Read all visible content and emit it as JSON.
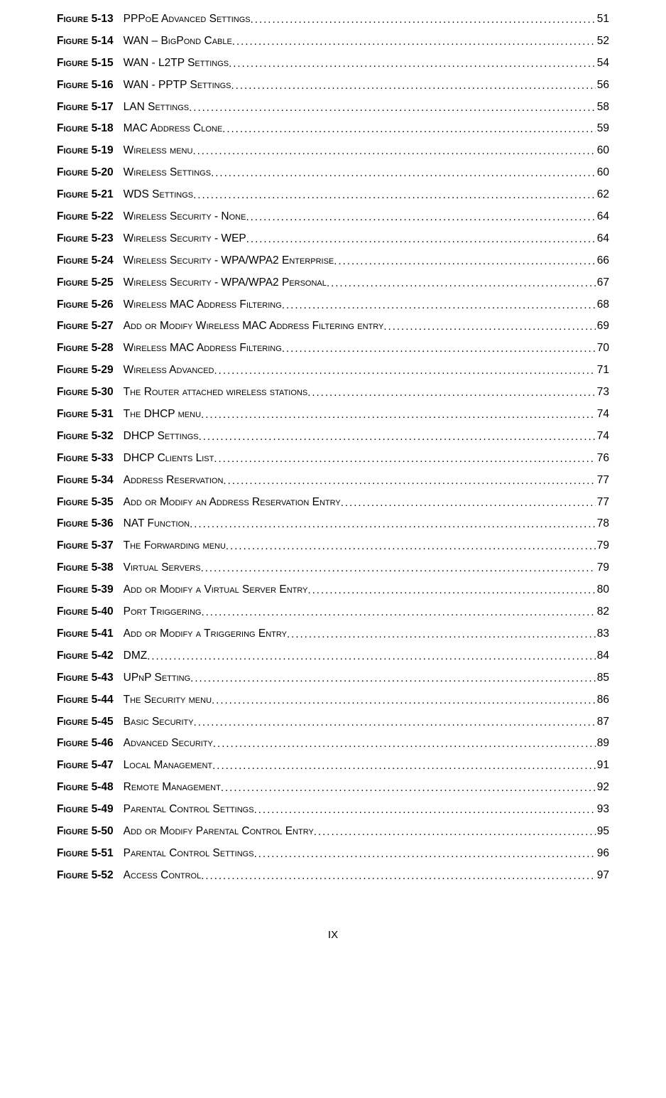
{
  "entries": [
    {
      "label": "Figure 5-13",
      "title": "PPPoE Advanced Settings",
      "page": "51"
    },
    {
      "label": "Figure 5-14",
      "title": "WAN – BigPond Cable",
      "page": "52"
    },
    {
      "label": "Figure 5-15",
      "title": "WAN - L2TP Settings",
      "page": "54"
    },
    {
      "label": "Figure 5-16",
      "title": "WAN - PPTP Settings",
      "page": "56"
    },
    {
      "label": "Figure 5-17",
      "title": "LAN Settings",
      "page": "58"
    },
    {
      "label": "Figure 5-18",
      "title": "MAC Address Clone",
      "page": "59"
    },
    {
      "label": "Figure 5-19",
      "title": "Wireless menu",
      "page": "60"
    },
    {
      "label": "Figure 5-20",
      "title": "Wireless Settings",
      "page": "60"
    },
    {
      "label": "Figure 5-21",
      "title": "WDS Settings",
      "page": "62"
    },
    {
      "label": "Figure 5-22",
      "title": "Wireless Security - None",
      "page": "64"
    },
    {
      "label": "Figure 5-23",
      "title": "Wireless Security - WEP",
      "page": "64"
    },
    {
      "label": "Figure 5-24",
      "title": "Wireless Security - WPA/WPA2 Enterprise",
      "page": "66"
    },
    {
      "label": "Figure 5-25",
      "title": "Wireless Security - WPA/WPA2 Personal",
      "page": "67"
    },
    {
      "label": "Figure 5-26",
      "title": "Wireless MAC Address Filtering",
      "page": "68"
    },
    {
      "label": "Figure 5-27",
      "title": "Add or Modify Wireless MAC Address Filtering entry",
      "page": "69"
    },
    {
      "label": "Figure 5-28",
      "title": "Wireless MAC Address Filtering",
      "page": "70"
    },
    {
      "label": "Figure 5-29",
      "title": "Wireless Advanced",
      "page": "71"
    },
    {
      "label": "Figure 5-30",
      "title": "The Router attached wireless stations",
      "page": "73"
    },
    {
      "label": "Figure 5-31",
      "title": "The DHCP menu",
      "page": "74"
    },
    {
      "label": "Figure 5-32",
      "title": "DHCP Settings",
      "page": "74"
    },
    {
      "label": "Figure 5-33",
      "title": "DHCP Clients List",
      "page": "76"
    },
    {
      "label": "Figure 5-34",
      "title": "Address Reservation",
      "page": "77"
    },
    {
      "label": "Figure 5-35",
      "title": "Add or Modify an Address Reservation Entry",
      "page": "77"
    },
    {
      "label": "Figure 5-36",
      "title": "NAT Function",
      "page": "78"
    },
    {
      "label": "Figure 5-37",
      "title": "The Forwarding menu",
      "page": "79"
    },
    {
      "label": "Figure 5-38",
      "title": "Virtual Servers",
      "page": "79"
    },
    {
      "label": "Figure 5-39",
      "title": "Add or Modify a Virtual Server Entry",
      "page": "80"
    },
    {
      "label": "Figure 5-40",
      "title": "Port Triggering",
      "page": "82"
    },
    {
      "label": "Figure 5-41",
      "title": "Add or Modify a Triggering Entry",
      "page": "83"
    },
    {
      "label": "Figure 5-42",
      "title": "DMZ",
      "page": "84"
    },
    {
      "label": "Figure 5-43",
      "title": "UPnP Setting",
      "page": "85"
    },
    {
      "label": "Figure 5-44",
      "title": "The Security menu",
      "page": "86"
    },
    {
      "label": "Figure 5-45",
      "title": "Basic Security",
      "page": "87"
    },
    {
      "label": "Figure 5-46",
      "title": "Advanced Security",
      "page": "89"
    },
    {
      "label": "Figure 5-47",
      "title": "Local Management",
      "page": "91"
    },
    {
      "label": "Figure 5-48",
      "title": "Remote Management",
      "page": "92"
    },
    {
      "label": "Figure 5-49",
      "title": "Parental Control Settings",
      "page": "93"
    },
    {
      "label": "Figure 5-50",
      "title": "Add or Modify Parental Control Entry",
      "page": "95"
    },
    {
      "label": "Figure 5-51",
      "title": "Parental Control Settings",
      "page": "96"
    },
    {
      "label": "Figure 5-52",
      "title": "Access Control",
      "page": "97"
    }
  ],
  "footer": "IX"
}
